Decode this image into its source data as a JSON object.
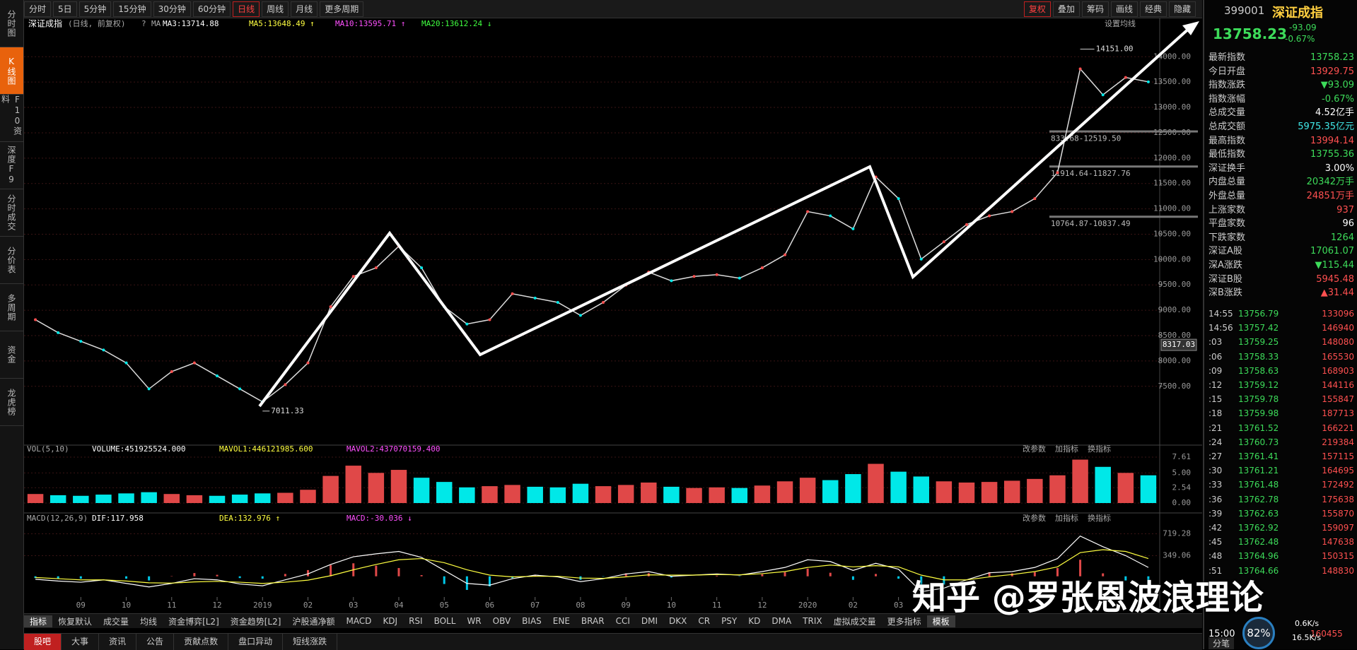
{
  "toolbar": {
    "tabs": [
      {
        "label": "分时"
      },
      {
        "label": "5日"
      },
      {
        "label": "5分钟"
      },
      {
        "label": "15分钟"
      },
      {
        "label": "30分钟"
      },
      {
        "label": "60分钟"
      },
      {
        "label": "日线",
        "active": true
      },
      {
        "label": "周线"
      },
      {
        "label": "月线"
      },
      {
        "label": "更多周期"
      }
    ],
    "right": [
      {
        "label": "复权",
        "active": true
      },
      {
        "label": "叠加"
      },
      {
        "label": "筹码"
      },
      {
        "label": "画线"
      },
      {
        "label": "经典"
      },
      {
        "label": "隐藏"
      }
    ]
  },
  "sidebar": {
    "items": [
      {
        "label": "分时图"
      },
      {
        "label": "K线图",
        "active": true
      },
      {
        "label": "F10资料"
      },
      {
        "label": "深度F9"
      },
      {
        "label": "分时成交"
      },
      {
        "label": "分价表"
      },
      {
        "label": "多周期"
      },
      {
        "label": "资金"
      },
      {
        "label": "龙虎榜"
      }
    ]
  },
  "price_chart": {
    "type": "line",
    "title": "深证成指",
    "subtitle": "(日线, 前复权)",
    "help": "?",
    "ma_label": "MA",
    "ma": [
      {
        "label": "MA3:13714.88",
        "color": "#ffffff"
      },
      {
        "label": "MA5:13648.49 ↑",
        "color": "#ffff40"
      },
      {
        "label": "MA10:13595.71 ↑",
        "color": "#ff50ff"
      },
      {
        "label": "MA20:13612.24 ↓",
        "color": "#40ff40"
      }
    ],
    "settings": "设置均线",
    "color": "#dcdcdc",
    "grid": true,
    "ylim": [
      6340,
      14450
    ],
    "yticks": [
      {
        "value": 14000,
        "label": "14000.00"
      },
      {
        "value": 13500,
        "label": "13500.00"
      },
      {
        "value": 13000,
        "label": "13000.00"
      },
      {
        "value": 12500,
        "label": "12500.00"
      },
      {
        "value": 12000,
        "label": "12000.00"
      },
      {
        "value": 11500,
        "label": "11500.00"
      },
      {
        "value": 11000,
        "label": "11000.00"
      },
      {
        "value": 10500,
        "label": "10500.00"
      },
      {
        "value": 10000,
        "label": "10000.00"
      },
      {
        "value": 9500,
        "label": "9500.00"
      },
      {
        "value": 9000,
        "label": "9000.00"
      },
      {
        "value": 8500,
        "label": "8500.00"
      },
      {
        "value": 8000,
        "label": "8000.00"
      },
      {
        "value": 7500,
        "label": "7500.00"
      }
    ],
    "marker": 8317.03,
    "high": {
      "value": 14151,
      "label": "14151.00"
    },
    "low": 7011.33,
    "levels": [
      {
        "value": 12519.5,
        "label": "833.68-12519.50"
      },
      {
        "value": 11827.76,
        "label": "11914.64-11827.76"
      },
      {
        "value": 10837.49,
        "label": "10764.87-10837.49"
      }
    ],
    "categories": [
      null,
      null,
      "09",
      null,
      "10",
      null,
      "11",
      null,
      "12",
      null,
      "2019",
      null,
      "02",
      null,
      "03",
      null,
      "04",
      null,
      "05",
      null,
      "06",
      null,
      "07",
      null,
      "08",
      null,
      "09",
      null,
      "10",
      null,
      "11",
      null,
      "12",
      null,
      "2020",
      null,
      "02",
      null,
      "03",
      null,
      null,
      null,
      null,
      null,
      null,
      null,
      null,
      null,
      null,
      null
    ],
    "values": [
      8813,
      8558,
      8387,
      8216,
      7961,
      7449,
      7790,
      7961,
      7705,
      7449,
      7193,
      7534,
      7961,
      9070,
      9667,
      9837,
      10264,
      9837,
      9070,
      8728,
      8813,
      9325,
      9240,
      9155,
      8899,
      9155,
      9496,
      9752,
      9581,
      9667,
      9701,
      9633,
      9837,
      10093,
      10946,
      10861,
      10605,
      11629,
      11202,
      10008,
      10349,
      10690,
      10861,
      10946,
      11202,
      11714,
      13761,
      13249,
      13591,
      13505
    ]
  },
  "volume_chart": {
    "type": "bar",
    "title": "VOL(5,10)",
    "labels": [
      {
        "label": "VOLUME:451925524.000",
        "color": "#ffffff"
      },
      {
        "label": "MAVOL1:446121985.600",
        "color": "#ffff40"
      },
      {
        "label": "MAVOL2:437070159.400",
        "color": "#ff50ff"
      }
    ],
    "buttons": [
      "改参数",
      "加指标",
      "换指标"
    ],
    "ylim": [
      0,
      8.2
    ],
    "yticks": [
      7.61,
      {
        "value": 5,
        "label": "5.00"
      },
      2.54,
      {
        "value": 0,
        "label": "0.00"
      }
    ],
    "up_color": "#e04848",
    "down_color": "#00e8e8",
    "values": [
      1.5,
      1.3,
      1.2,
      1.4,
      1.6,
      1.8,
      1.5,
      1.3,
      1.2,
      1.4,
      1.6,
      1.7,
      2.2,
      4.5,
      6.2,
      5.0,
      5.5,
      4.2,
      3.5,
      2.6,
      2.8,
      3.0,
      2.7,
      2.6,
      3.2,
      2.8,
      3.0,
      3.4,
      2.7,
      2.5,
      2.6,
      2.5,
      2.9,
      3.6,
      4.2,
      3.8,
      4.8,
      6.5,
      5.2,
      4.4,
      3.6,
      3.4,
      3.5,
      3.7,
      4.0,
      4.6,
      7.2,
      6.0,
      5.0,
      4.6
    ]
  },
  "macd_chart": {
    "type": "macd",
    "title": "MACD(12,26,9)",
    "labels": [
      {
        "label": "DIF:117.958",
        "color": "#ffffff"
      },
      {
        "label": "DEA:132.976 ↑",
        "color": "#ffff40"
      },
      {
        "label": "MACD:-30.036 ↓",
        "color": "#ff50ff"
      }
    ],
    "buttons": [
      "改参数",
      "加指标",
      "换指标"
    ],
    "ylim": [
      -350,
      904
    ],
    "yticks": [
      719.28,
      349.06
    ],
    "dif": [
      -50,
      -80,
      -100,
      -60,
      -120,
      -180,
      -120,
      -40,
      -60,
      -130,
      -160,
      -60,
      40,
      200,
      330,
      380,
      420,
      320,
      100,
      -120,
      -150,
      -40,
      20,
      -10,
      -90,
      -40,
      40,
      80,
      0,
      20,
      40,
      20,
      80,
      150,
      280,
      250,
      100,
      220,
      120,
      -260,
      -200,
      -60,
      60,
      80,
      150,
      300,
      680,
      500,
      350,
      150
    ],
    "dea": [
      -20,
      -40,
      -60,
      -60,
      -80,
      -110,
      -115,
      -95,
      -85,
      -100,
      -120,
      -100,
      -65,
      10,
      110,
      200,
      280,
      300,
      230,
      110,
      20,
      -10,
      0,
      0,
      -30,
      -35,
      -10,
      25,
      20,
      20,
      30,
      25,
      45,
      80,
      150,
      190,
      160,
      180,
      160,
      20,
      -60,
      -60,
      -10,
      30,
      80,
      160,
      400,
      450,
      420,
      300
    ],
    "hist": [
      -30,
      -40,
      -40,
      0,
      -40,
      -70,
      5,
      55,
      25,
      -30,
      -40,
      40,
      105,
      190,
      220,
      180,
      140,
      20,
      -130,
      -230,
      -170,
      -30,
      20,
      -10,
      -60,
      -5,
      50,
      55,
      -20,
      0,
      10,
      -5,
      35,
      70,
      130,
      60,
      -60,
      40,
      -40,
      -280,
      -140,
      0,
      70,
      50,
      70,
      140,
      280,
      50,
      -70,
      -150
    ]
  },
  "indicator_tabs": [
    {
      "label": "指标",
      "active": true
    },
    {
      "label": "恢复默认"
    },
    {
      "label": "成交量"
    },
    {
      "label": "均线"
    },
    {
      "label": "资金博弈[L2]"
    },
    {
      "label": "资金趋势[L2]"
    },
    {
      "label": "沪股通净额"
    },
    {
      "label": "MACD"
    },
    {
      "label": "KDJ"
    },
    {
      "label": "RSI"
    },
    {
      "label": "BOLL"
    },
    {
      "label": "WR"
    },
    {
      "label": "OBV"
    },
    {
      "label": "BIAS"
    },
    {
      "label": "ENE"
    },
    {
      "label": "BRAR"
    },
    {
      "label": "CCI"
    },
    {
      "label": "DMI"
    },
    {
      "label": "DKX"
    },
    {
      "label": "CR"
    },
    {
      "label": "PSY"
    },
    {
      "label": "KD"
    },
    {
      "label": "DMA"
    },
    {
      "label": "TRIX"
    },
    {
      "label": "虚拟成交量"
    },
    {
      "label": "更多指标"
    },
    {
      "label": "模板",
      "active": true
    }
  ],
  "footer_tabs": [
    {
      "label": "股吧",
      "active": true
    },
    {
      "label": "大事"
    },
    {
      "label": "资讯"
    },
    {
      "label": "公告"
    },
    {
      "label": "贡献点数"
    },
    {
      "label": "盘口异动"
    },
    {
      "label": "短线涨跌"
    }
  ],
  "quote": {
    "code": "399001",
    "name": "深证成指",
    "price": "13758.23",
    "change": "-93.09",
    "pct": "-0.67%",
    "rows": [
      {
        "label": "最新指数",
        "value": "13758.23",
        "color": "#3ddc5a"
      },
      {
        "label": "今日开盘",
        "value": "13929.75",
        "color": "#ff5050"
      },
      {
        "label": "指数涨跌",
        "value": "▼93.09",
        "color": "#3ddc5a"
      },
      {
        "label": "指数涨幅",
        "value": "-0.67%",
        "color": "#3ddc5a"
      },
      {
        "label": "总成交量",
        "value": "4.52亿手",
        "color": "#ffffff"
      },
      {
        "label": "总成交额",
        "value": "5975.35亿元",
        "color": "#40e8e8"
      },
      {
        "label": "最高指数",
        "value": "13994.14",
        "color": "#ff5050"
      },
      {
        "label": "最低指数",
        "value": "13755.36",
        "color": "#3ddc5a"
      },
      {
        "label": "深证换手",
        "value": "3.00%",
        "color": "#ffffff"
      },
      {
        "label": "内盘总量",
        "value": "20342万手",
        "color": "#3ddc5a"
      },
      {
        "label": "外盘总量",
        "value": "24851万手",
        "color": "#ff5050"
      },
      {
        "label": "上涨家数",
        "value": "937",
        "color": "#ff5050"
      },
      {
        "label": "平盘家数",
        "value": "96",
        "color": "#ffffff"
      },
      {
        "label": "下跌家数",
        "value": "1264",
        "color": "#3ddc5a"
      },
      {
        "label": "深证A股",
        "value": "17061.07",
        "color": "#3ddc5a"
      },
      {
        "label": "深A涨跌",
        "value": "▼115.44",
        "color": "#3ddc5a"
      },
      {
        "label": "深证B股",
        "value": "5945.48",
        "color": "#ff5050"
      },
      {
        "label": "深B涨跌",
        "value": "▲31.44",
        "color": "#ff5050"
      }
    ],
    "ticks": [
      [
        "14:55",
        "13756.79",
        "133096"
      ],
      [
        "14:56",
        "13757.42",
        "146940"
      ],
      [
        ":03",
        "13759.25",
        "148080"
      ],
      [
        ":06",
        "13758.33",
        "165530"
      ],
      [
        ":09",
        "13758.63",
        "168903"
      ],
      [
        ":12",
        "13759.12",
        "144116"
      ],
      [
        ":15",
        "13759.78",
        "155847"
      ],
      [
        ":18",
        "13759.98",
        "187713"
      ],
      [
        ":21",
        "13761.52",
        "166221"
      ],
      [
        ":24",
        "13760.73",
        "219384"
      ],
      [
        ":27",
        "13761.41",
        "157115"
      ],
      [
        ":30",
        "13761.21",
        "164695"
      ],
      [
        ":33",
        "13761.48",
        "172492"
      ],
      [
        ":36",
        "13762.78",
        "175638"
      ],
      [
        ":39",
        "13762.63",
        "155870"
      ],
      [
        ":42",
        "13762.92",
        "159097"
      ],
      [
        ":45",
        "13762.48",
        "147638"
      ],
      [
        ":48",
        "13764.96",
        "150315"
      ],
      [
        ":51",
        "13764.66",
        "148830"
      ]
    ],
    "close_time": "15:00",
    "close_vol": "160455",
    "tab": "分笔",
    "usage": "82%",
    "up_speed": "0.6K/s",
    "down_speed": "16.5K/s"
  },
  "watermark": "知乎 @罗张恩波浪理论"
}
